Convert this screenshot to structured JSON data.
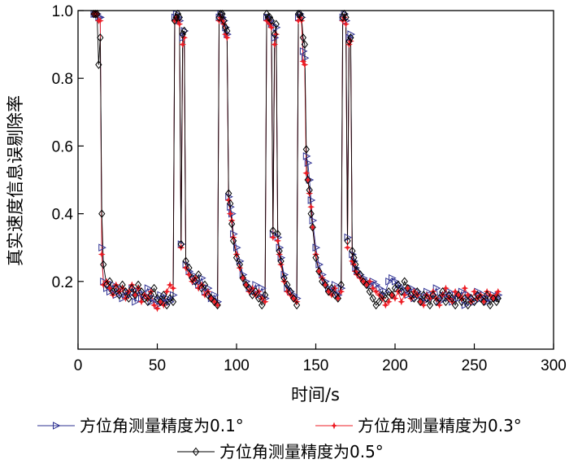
{
  "chart_data": {
    "type": "line",
    "title": "",
    "xlabel": "时间/s",
    "ylabel": "真实速度信息误剔除率",
    "xlim": [
      0,
      300
    ],
    "ylim": [
      0,
      1.0
    ],
    "xticks": [
      "0",
      "50",
      "100",
      "150",
      "200",
      "250",
      "300"
    ],
    "yticks": [
      "0.2",
      "0.4",
      "0.6",
      "0.8",
      "1.0"
    ],
    "grid": false,
    "legend": "bottom",
    "series": [
      {
        "name": "方位角测量精度为0.1°",
        "color": "#2e3192",
        "marker": "triangle-right",
        "x": [
          10,
          11,
          12,
          13,
          14,
          15,
          16,
          18,
          20,
          22,
          24,
          26,
          28,
          30,
          32,
          34,
          36,
          38,
          40,
          42,
          44,
          46,
          48,
          50,
          52,
          54,
          56,
          58,
          60,
          61,
          62,
          63,
          64,
          65,
          66,
          67,
          68,
          70,
          72,
          74,
          76,
          78,
          80,
          82,
          84,
          86,
          88,
          89,
          90,
          91,
          92,
          93,
          94,
          95,
          96,
          97,
          98,
          100,
          102,
          104,
          106,
          108,
          110,
          112,
          114,
          116,
          118,
          119,
          120,
          121,
          122,
          123,
          124,
          125,
          126,
          127,
          128,
          130,
          132,
          134,
          136,
          138,
          139,
          140,
          141,
          142,
          143,
          144,
          145,
          146,
          147,
          148,
          150,
          152,
          154,
          156,
          158,
          160,
          162,
          164,
          166,
          167,
          168,
          169,
          170,
          171,
          172,
          173,
          174,
          175,
          176,
          178,
          180,
          182,
          184,
          186,
          188,
          190,
          192,
          194,
          196,
          198,
          200,
          202,
          204,
          206,
          208,
          210,
          212,
          214,
          216,
          218,
          220,
          222,
          224,
          226,
          228,
          230,
          232,
          234,
          236,
          238,
          240,
          242,
          244,
          246,
          248,
          250,
          252,
          254,
          256,
          258,
          260,
          262,
          264,
          265
        ],
        "y": [
          0.99,
          0.99,
          0.99,
          0.98,
          0.98,
          0.3,
          0.2,
          0.18,
          0.17,
          0.19,
          0.16,
          0.18,
          0.15,
          0.17,
          0.16,
          0.18,
          0.14,
          0.17,
          0.15,
          0.16,
          0.18,
          0.14,
          0.15,
          0.13,
          0.16,
          0.14,
          0.15,
          0.14,
          0.16,
          0.98,
          0.99,
          0.98,
          0.97,
          0.31,
          0.92,
          0.94,
          0.25,
          0.23,
          0.22,
          0.2,
          0.19,
          0.21,
          0.17,
          0.18,
          0.15,
          0.16,
          0.14,
          0.98,
          0.99,
          0.98,
          0.97,
          0.95,
          0.93,
          0.45,
          0.42,
          0.4,
          0.34,
          0.3,
          0.26,
          0.22,
          0.2,
          0.18,
          0.17,
          0.19,
          0.16,
          0.18,
          0.15,
          0.98,
          0.98,
          0.97,
          0.96,
          0.34,
          0.92,
          0.95,
          0.33,
          0.3,
          0.27,
          0.22,
          0.18,
          0.17,
          0.16,
          0.15,
          0.98,
          0.99,
          0.98,
          0.88,
          0.86,
          0.57,
          0.55,
          0.5,
          0.44,
          0.38,
          0.3,
          0.25,
          0.22,
          0.2,
          0.18,
          0.17,
          0.19,
          0.16,
          0.18,
          0.98,
          0.99,
          0.97,
          0.33,
          0.92,
          0.93,
          0.28,
          0.26,
          0.24,
          0.23,
          0.22,
          0.21,
          0.2,
          0.19,
          0.2,
          0.19,
          0.18,
          0.16,
          0.17,
          0.2,
          0.21,
          0.2,
          0.19,
          0.18,
          0.17,
          0.16,
          0.18,
          0.15,
          0.17,
          0.16,
          0.14,
          0.17,
          0.15,
          0.16,
          0.18,
          0.14,
          0.16,
          0.15,
          0.17,
          0.14,
          0.16,
          0.15,
          0.17,
          0.13,
          0.16,
          0.15,
          0.14,
          0.17,
          0.15,
          0.16,
          0.14,
          0.15,
          0.16,
          0.15,
          0.16
        ]
      },
      {
        "name": "方位角测量精度为0.3°",
        "color": "#ed1c24",
        "marker": "star",
        "x": [
          10,
          11,
          12,
          13,
          14,
          15,
          16,
          18,
          20,
          22,
          24,
          26,
          28,
          30,
          32,
          34,
          36,
          38,
          40,
          42,
          44,
          46,
          48,
          50,
          52,
          54,
          56,
          58,
          60,
          61,
          62,
          63,
          64,
          65,
          66,
          67,
          68,
          70,
          72,
          74,
          76,
          78,
          80,
          82,
          84,
          86,
          88,
          89,
          90,
          91,
          92,
          93,
          94,
          95,
          96,
          97,
          98,
          100,
          102,
          104,
          106,
          108,
          110,
          112,
          114,
          116,
          118,
          119,
          120,
          121,
          122,
          123,
          124,
          125,
          126,
          127,
          128,
          130,
          132,
          134,
          136,
          138,
          139,
          140,
          141,
          142,
          143,
          144,
          145,
          146,
          147,
          148,
          150,
          152,
          154,
          156,
          158,
          160,
          162,
          164,
          166,
          167,
          168,
          169,
          170,
          171,
          172,
          173,
          174,
          175,
          176,
          178,
          180,
          182,
          184,
          186,
          188,
          190,
          192,
          194,
          196,
          198,
          200,
          202,
          204,
          206,
          208,
          210,
          212,
          214,
          216,
          218,
          220,
          222,
          224,
          226,
          228,
          230,
          232,
          234,
          236,
          238,
          240,
          242,
          244,
          246,
          248,
          250,
          252,
          254,
          256,
          258,
          260,
          262,
          264,
          265
        ],
        "y": [
          0.99,
          0.99,
          0.99,
          0.97,
          0.97,
          0.28,
          0.19,
          0.2,
          0.18,
          0.16,
          0.19,
          0.17,
          0.18,
          0.15,
          0.17,
          0.19,
          0.16,
          0.18,
          0.14,
          0.16,
          0.15,
          0.17,
          0.13,
          0.12,
          0.14,
          0.13,
          0.17,
          0.19,
          0.18,
          0.97,
          0.98,
          0.97,
          0.96,
          0.3,
          0.9,
          0.92,
          0.24,
          0.22,
          0.2,
          0.21,
          0.18,
          0.19,
          0.16,
          0.17,
          0.15,
          0.14,
          0.13,
          0.97,
          0.98,
          0.97,
          0.96,
          0.93,
          0.92,
          0.44,
          0.4,
          0.38,
          0.33,
          0.28,
          0.24,
          0.21,
          0.19,
          0.17,
          0.18,
          0.16,
          0.17,
          0.15,
          0.14,
          0.97,
          0.97,
          0.96,
          0.95,
          0.33,
          0.9,
          0.93,
          0.32,
          0.28,
          0.25,
          0.2,
          0.17,
          0.16,
          0.15,
          0.14,
          0.97,
          0.98,
          0.97,
          0.85,
          0.84,
          0.52,
          0.5,
          0.46,
          0.42,
          0.36,
          0.28,
          0.23,
          0.21,
          0.19,
          0.17,
          0.16,
          0.18,
          0.15,
          0.17,
          0.97,
          0.98,
          0.96,
          0.3,
          0.9,
          0.91,
          0.26,
          0.25,
          0.23,
          0.22,
          0.21,
          0.2,
          0.19,
          0.2,
          0.18,
          0.17,
          0.16,
          0.15,
          0.13,
          0.14,
          0.16,
          0.15,
          0.17,
          0.14,
          0.16,
          0.18,
          0.15,
          0.17,
          0.16,
          0.14,
          0.13,
          0.16,
          0.15,
          0.17,
          0.15,
          0.13,
          0.16,
          0.18,
          0.15,
          0.14,
          0.17,
          0.16,
          0.15,
          0.18,
          0.16,
          0.14,
          0.17,
          0.15,
          0.16,
          0.14,
          0.17,
          0.16,
          0.15,
          0.16,
          0.17
        ]
      },
      {
        "name": "方位角测量精度为0.5°",
        "color": "#000000",
        "marker": "diamond",
        "x": [
          10,
          11,
          12,
          13,
          14,
          15,
          16,
          18,
          20,
          22,
          24,
          26,
          28,
          30,
          32,
          34,
          36,
          38,
          40,
          42,
          44,
          46,
          48,
          50,
          52,
          54,
          56,
          58,
          60,
          61,
          62,
          63,
          64,
          65,
          66,
          67,
          68,
          70,
          72,
          74,
          76,
          78,
          80,
          82,
          84,
          86,
          88,
          89,
          90,
          91,
          92,
          93,
          94,
          95,
          96,
          97,
          98,
          100,
          102,
          104,
          106,
          108,
          110,
          112,
          114,
          116,
          118,
          119,
          120,
          121,
          122,
          123,
          124,
          125,
          126,
          127,
          128,
          130,
          132,
          134,
          136,
          138,
          139,
          140,
          141,
          142,
          143,
          144,
          145,
          146,
          147,
          148,
          150,
          152,
          154,
          156,
          158,
          160,
          162,
          164,
          166,
          167,
          168,
          169,
          170,
          171,
          172,
          173,
          174,
          175,
          176,
          178,
          180,
          182,
          184,
          186,
          188,
          190,
          192,
          194,
          196,
          198,
          200,
          202,
          204,
          206,
          208,
          210,
          212,
          214,
          216,
          218,
          220,
          222,
          224,
          226,
          228,
          230,
          232,
          234,
          236,
          238,
          240,
          242,
          244,
          246,
          248,
          250,
          252,
          254,
          256,
          258,
          260,
          262,
          264,
          265
        ],
        "y": [
          0.99,
          0.99,
          0.99,
          0.84,
          0.92,
          0.4,
          0.25,
          0.19,
          0.2,
          0.17,
          0.18,
          0.16,
          0.19,
          0.17,
          0.15,
          0.18,
          0.16,
          0.19,
          0.17,
          0.15,
          0.14,
          0.16,
          0.18,
          0.15,
          0.14,
          0.16,
          0.13,
          0.15,
          0.14,
          0.97,
          0.98,
          0.99,
          0.98,
          0.31,
          0.93,
          0.94,
          0.26,
          0.24,
          0.21,
          0.2,
          0.22,
          0.18,
          0.19,
          0.16,
          0.15,
          0.14,
          0.13,
          0.98,
          0.99,
          0.99,
          0.97,
          0.95,
          0.94,
          0.46,
          0.43,
          0.37,
          0.32,
          0.27,
          0.25,
          0.21,
          0.19,
          0.18,
          0.16,
          0.17,
          0.15,
          0.13,
          0.16,
          0.99,
          0.98,
          0.98,
          0.97,
          0.35,
          0.93,
          0.96,
          0.34,
          0.29,
          0.26,
          0.21,
          0.19,
          0.17,
          0.15,
          0.13,
          0.99,
          0.99,
          0.98,
          0.92,
          0.9,
          0.59,
          0.5,
          0.47,
          0.4,
          0.36,
          0.27,
          0.23,
          0.2,
          0.19,
          0.17,
          0.18,
          0.16,
          0.15,
          0.19,
          0.98,
          0.99,
          0.98,
          0.32,
          0.91,
          0.92,
          0.29,
          0.27,
          0.25,
          0.23,
          0.22,
          0.2,
          0.19,
          0.17,
          0.15,
          0.13,
          0.14,
          0.16,
          0.15,
          0.17,
          0.16,
          0.18,
          0.19,
          0.17,
          0.2,
          0.18,
          0.16,
          0.15,
          0.17,
          0.14,
          0.16,
          0.15,
          0.13,
          0.16,
          0.14,
          0.15,
          0.17,
          0.14,
          0.16,
          0.15,
          0.13,
          0.16,
          0.14,
          0.15,
          0.13,
          0.15,
          0.14,
          0.16,
          0.15,
          0.14,
          0.16,
          0.13,
          0.15,
          0.14,
          0.15
        ]
      }
    ]
  }
}
